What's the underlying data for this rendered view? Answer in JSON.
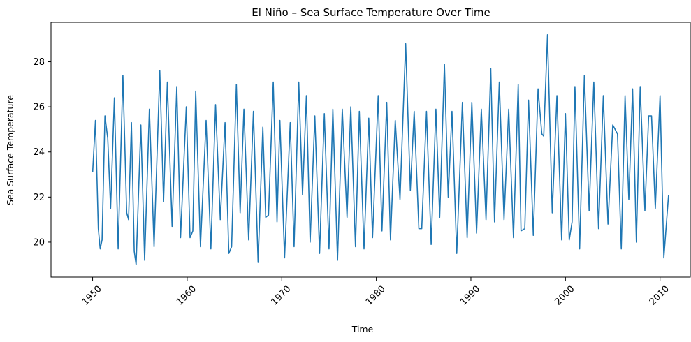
{
  "chart_data": {
    "type": "line",
    "title": "El Niño – Sea Surface Temperature Over Time",
    "xlabel": "Time",
    "ylabel": "Sea Surface Temperature",
    "xlim": [
      1945.6,
      2013.2
    ],
    "ylim": [
      18.45,
      29.75
    ],
    "x_ticks": [
      1950,
      1960,
      1970,
      1980,
      1990,
      2000,
      2010
    ],
    "y_ticks": [
      20,
      22,
      24,
      26,
      28
    ],
    "x_tick_rotation_deg": 45,
    "grid": false,
    "legend": "none",
    "line_color": "#1f77b4",
    "series": [
      {
        "points": [
          [
            1950.0,
            23.1
          ],
          [
            1950.3,
            25.4
          ],
          [
            1950.6,
            20.6
          ],
          [
            1950.8,
            19.7
          ],
          [
            1951.0,
            20.1
          ],
          [
            1951.3,
            25.6
          ],
          [
            1951.6,
            24.6
          ],
          [
            1951.9,
            21.5
          ],
          [
            1952.3,
            26.4
          ],
          [
            1952.7,
            19.7
          ],
          [
            1953.2,
            27.4
          ],
          [
            1953.6,
            21.3
          ],
          [
            1953.8,
            21.0
          ],
          [
            1954.1,
            25.3
          ],
          [
            1954.4,
            19.6
          ],
          [
            1954.6,
            19.0
          ],
          [
            1955.1,
            25.2
          ],
          [
            1955.5,
            19.2
          ],
          [
            1956.0,
            25.9
          ],
          [
            1956.5,
            19.8
          ],
          [
            1957.1,
            27.6
          ],
          [
            1957.5,
            21.8
          ],
          [
            1957.9,
            27.1
          ],
          [
            1958.4,
            20.7
          ],
          [
            1958.9,
            26.9
          ],
          [
            1959.3,
            20.2
          ],
          [
            1959.9,
            26.0
          ],
          [
            1960.3,
            20.2
          ],
          [
            1960.6,
            20.5
          ],
          [
            1960.9,
            26.7
          ],
          [
            1961.4,
            19.8
          ],
          [
            1962.0,
            25.4
          ],
          [
            1962.5,
            19.7
          ],
          [
            1963.0,
            26.1
          ],
          [
            1963.5,
            21.0
          ],
          [
            1964.0,
            25.3
          ],
          [
            1964.4,
            19.5
          ],
          [
            1964.7,
            19.8
          ],
          [
            1965.2,
            27.0
          ],
          [
            1965.6,
            21.3
          ],
          [
            1966.0,
            25.9
          ],
          [
            1966.5,
            20.1
          ],
          [
            1967.0,
            25.8
          ],
          [
            1967.5,
            19.1
          ],
          [
            1968.0,
            25.1
          ],
          [
            1968.3,
            21.1
          ],
          [
            1968.6,
            21.2
          ],
          [
            1969.1,
            27.1
          ],
          [
            1969.5,
            20.9
          ],
          [
            1969.8,
            25.4
          ],
          [
            1970.3,
            19.3
          ],
          [
            1970.9,
            25.3
          ],
          [
            1971.3,
            19.8
          ],
          [
            1971.8,
            27.1
          ],
          [
            1972.2,
            22.1
          ],
          [
            1972.6,
            26.5
          ],
          [
            1973.0,
            20.0
          ],
          [
            1973.5,
            25.6
          ],
          [
            1974.0,
            19.5
          ],
          [
            1974.5,
            25.7
          ],
          [
            1975.0,
            19.7
          ],
          [
            1975.4,
            25.9
          ],
          [
            1975.9,
            19.2
          ],
          [
            1976.4,
            25.9
          ],
          [
            1976.9,
            21.1
          ],
          [
            1977.3,
            26.0
          ],
          [
            1977.8,
            19.8
          ],
          [
            1978.2,
            25.8
          ],
          [
            1978.7,
            19.7
          ],
          [
            1979.2,
            25.5
          ],
          [
            1979.6,
            20.2
          ],
          [
            1980.2,
            26.5
          ],
          [
            1980.6,
            20.5
          ],
          [
            1981.1,
            26.2
          ],
          [
            1981.5,
            20.1
          ],
          [
            1982.0,
            25.4
          ],
          [
            1982.5,
            21.9
          ],
          [
            1983.1,
            28.8
          ],
          [
            1983.6,
            22.3
          ],
          [
            1984.0,
            25.8
          ],
          [
            1984.5,
            20.6
          ],
          [
            1984.8,
            20.6
          ],
          [
            1985.3,
            25.8
          ],
          [
            1985.8,
            19.9
          ],
          [
            1986.3,
            25.9
          ],
          [
            1986.7,
            21.1
          ],
          [
            1987.2,
            27.9
          ],
          [
            1987.6,
            22.0
          ],
          [
            1988.0,
            25.8
          ],
          [
            1988.5,
            19.5
          ],
          [
            1989.1,
            26.2
          ],
          [
            1989.6,
            20.2
          ],
          [
            1990.1,
            26.2
          ],
          [
            1990.6,
            20.4
          ],
          [
            1991.1,
            25.9
          ],
          [
            1991.6,
            21.0
          ],
          [
            1992.1,
            27.7
          ],
          [
            1992.5,
            20.9
          ],
          [
            1993.0,
            27.1
          ],
          [
            1993.5,
            21.0
          ],
          [
            1994.0,
            25.9
          ],
          [
            1994.5,
            20.2
          ],
          [
            1995.0,
            27.0
          ],
          [
            1995.3,
            20.5
          ],
          [
            1995.7,
            20.6
          ],
          [
            1996.1,
            26.3
          ],
          [
            1996.6,
            20.3
          ],
          [
            1997.1,
            26.8
          ],
          [
            1997.5,
            24.8
          ],
          [
            1997.7,
            24.7
          ],
          [
            1998.1,
            29.2
          ],
          [
            1998.6,
            21.3
          ],
          [
            1999.1,
            26.5
          ],
          [
            1999.6,
            20.1
          ],
          [
            2000.0,
            25.7
          ],
          [
            2000.4,
            20.1
          ],
          [
            2000.7,
            20.9
          ],
          [
            2001.0,
            26.9
          ],
          [
            2001.5,
            19.7
          ],
          [
            2002.0,
            27.4
          ],
          [
            2002.5,
            21.4
          ],
          [
            2003.0,
            27.1
          ],
          [
            2003.5,
            20.6
          ],
          [
            2004.0,
            26.5
          ],
          [
            2004.5,
            20.8
          ],
          [
            2005.0,
            25.2
          ],
          [
            2005.5,
            24.8
          ],
          [
            2005.9,
            19.7
          ],
          [
            2006.3,
            26.5
          ],
          [
            2006.7,
            21.9
          ],
          [
            2007.1,
            26.8
          ],
          [
            2007.5,
            20.0
          ],
          [
            2007.9,
            26.9
          ],
          [
            2008.4,
            21.4
          ],
          [
            2008.8,
            25.6
          ],
          [
            2009.1,
            25.6
          ],
          [
            2009.5,
            21.5
          ],
          [
            2010.0,
            26.5
          ],
          [
            2010.4,
            19.3
          ],
          [
            2010.9,
            22.1
          ]
        ]
      }
    ]
  }
}
